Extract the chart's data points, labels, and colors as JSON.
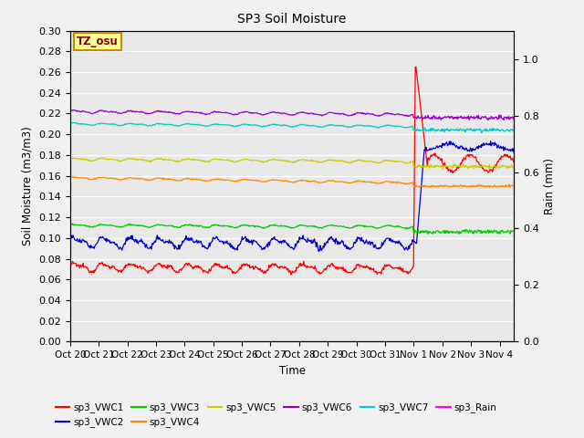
{
  "title": "SP3 Soil Moisture",
  "xlabel": "Time",
  "ylabel_left": "Soil Moisture (m3/m3)",
  "ylabel_right": "Rain (mm)",
  "ylim_left": [
    0.0,
    0.3
  ],
  "ylim_right": [
    0.0,
    1.1
  ],
  "xtick_labels": [
    "Oct 20",
    "Oct 21",
    "Oct 22",
    "Oct 23",
    "Oct 24",
    "Oct 25",
    "Oct 26",
    "Oct 27",
    "Oct 28",
    "Oct 29",
    "Oct 30",
    "Oct 31",
    "Nov 1",
    "Nov 2",
    "Nov 3",
    "Nov 4"
  ],
  "xtick_positions": [
    0,
    1,
    2,
    3,
    4,
    5,
    6,
    7,
    8,
    9,
    10,
    11,
    12,
    13,
    14,
    15
  ],
  "label_box_text": "TZ_osu",
  "label_box_color": "#ffff99",
  "label_box_edgecolor": "#cc8800",
  "colors": {
    "sp3_VWC1": "#ff0000",
    "sp3_VWC2": "#0000cc",
    "sp3_VWC3": "#00cc00",
    "sp3_VWC4": "#ff8800",
    "sp3_VWC5": "#cccc00",
    "sp3_VWC6": "#9900cc",
    "sp3_VWC7": "#00cccc",
    "sp3_Rain": "#ff00ff"
  },
  "background_color": "#e8e8e8",
  "grid_color": "#ffffff"
}
